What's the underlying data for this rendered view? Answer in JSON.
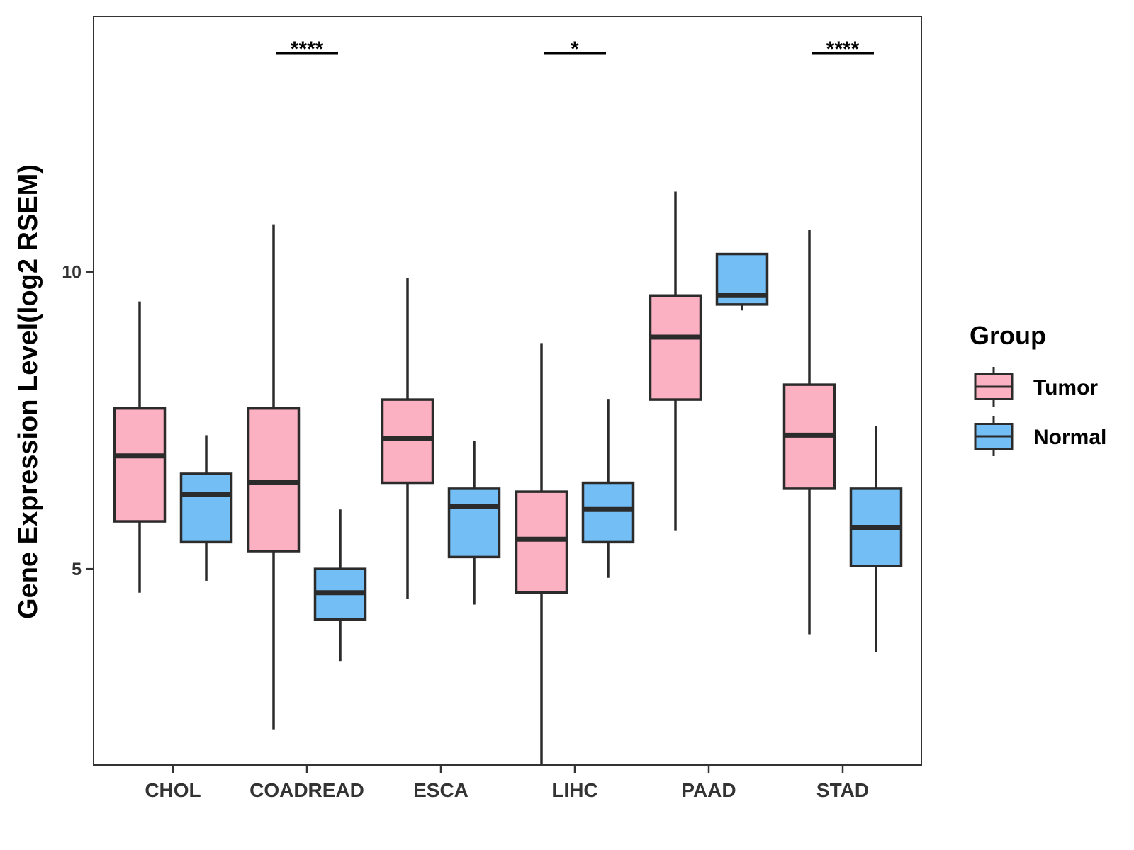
{
  "chart_data": {
    "type": "boxplot",
    "title": "",
    "xlabel": "",
    "ylabel": "Gene Expression Level(log2 RSEM)",
    "ylim": [
      1.7,
      14.3
    ],
    "yticks": [
      5,
      10
    ],
    "grid": false,
    "legend_position": "right",
    "legend_title": "Group",
    "categories": [
      "CHOL",
      "COADREAD",
      "ESCA",
      "LIHC",
      "PAAD",
      "STAD"
    ],
    "series": [
      {
        "name": "Tumor",
        "color": "#FBB1C2",
        "boxes": [
          {
            "whisker_low": 4.6,
            "q1": 5.8,
            "median": 6.9,
            "q3": 7.7,
            "whisker_high": 9.5
          },
          {
            "whisker_low": 2.3,
            "q1": 5.3,
            "median": 6.45,
            "q3": 7.7,
            "whisker_high": 10.8
          },
          {
            "whisker_low": 4.5,
            "q1": 6.45,
            "median": 7.2,
            "q3": 7.85,
            "whisker_high": 9.9
          },
          {
            "whisker_low": 1.7,
            "q1": 4.6,
            "median": 5.5,
            "q3": 6.3,
            "whisker_high": 8.8
          },
          {
            "whisker_low": 5.65,
            "q1": 7.85,
            "median": 8.9,
            "q3": 9.6,
            "whisker_high": 11.35
          },
          {
            "whisker_low": 3.9,
            "q1": 6.35,
            "median": 7.25,
            "q3": 8.1,
            "whisker_high": 10.7
          }
        ]
      },
      {
        "name": "Normal",
        "color": "#74BEF6",
        "boxes": [
          {
            "whisker_low": 4.8,
            "q1": 5.45,
            "median": 6.25,
            "q3": 6.6,
            "whisker_high": 7.25
          },
          {
            "whisker_low": 3.45,
            "q1": 4.15,
            "median": 4.6,
            "q3": 5.0,
            "whisker_high": 6.0
          },
          {
            "whisker_low": 4.4,
            "q1": 5.2,
            "median": 6.05,
            "q3": 6.35,
            "whisker_high": 7.15
          },
          {
            "whisker_low": 4.85,
            "q1": 5.45,
            "median": 6.0,
            "q3": 6.45,
            "whisker_high": 7.85
          },
          {
            "whisker_low": 9.35,
            "q1": 9.45,
            "median": 9.6,
            "q3": 10.3,
            "whisker_high": 10.3
          },
          {
            "whisker_low": 3.6,
            "q1": 5.05,
            "median": 5.7,
            "q3": 6.35,
            "whisker_high": 7.4
          }
        ]
      }
    ],
    "significance": [
      {
        "category": "COADREAD",
        "label": "****"
      },
      {
        "category": "LIHC",
        "label": "*"
      },
      {
        "category": "STAD",
        "label": "****"
      }
    ]
  }
}
